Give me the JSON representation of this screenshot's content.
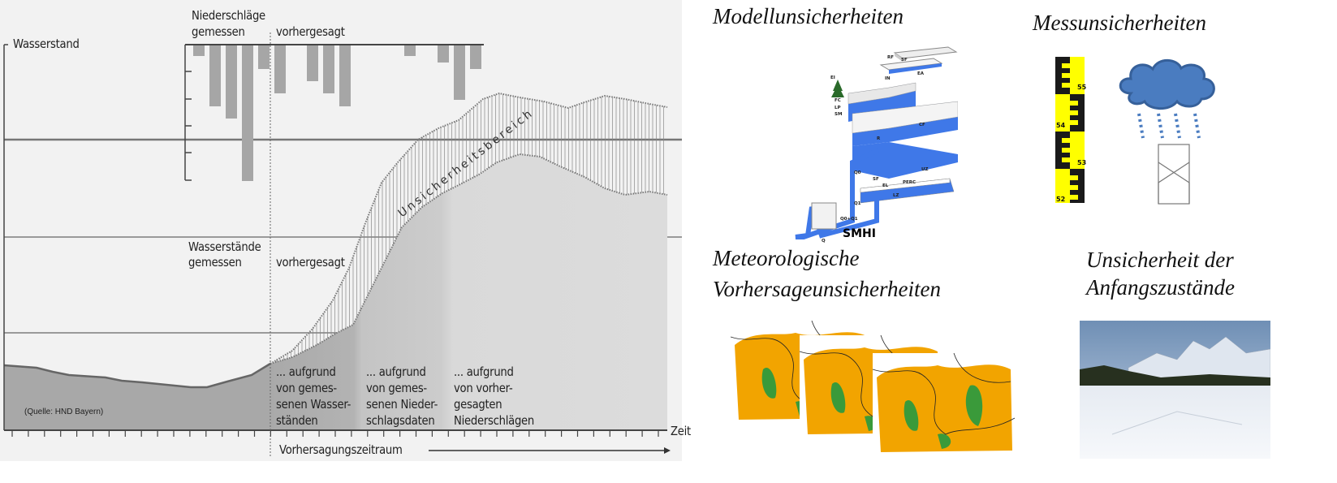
{
  "left_diagram": {
    "y_axis_label": "Wasserstand",
    "x_axis_label": "Zeit",
    "precip_title": "Niederschläge",
    "precip_measured": "gemessen",
    "precip_forecast": "vorhergesagt",
    "level_title": "Wasserstände",
    "level_measured": "gemessen",
    "level_forecast": "vorhergesagt",
    "uncertainty_label": "Unsicherheitsbereich",
    "zone1": [
      "... aufgrund",
      "von gemes-",
      "senen Wasser-",
      "ständen"
    ],
    "zone2": [
      "... aufgrund",
      "von gemes-",
      "senen Nieder-",
      "schlagsdaten"
    ],
    "zone3": [
      "... aufgrund",
      "von vorher-",
      "gesagten",
      "Niederschlägen"
    ],
    "forecast_period": "Vorhersagungszeitraum",
    "source": "(Quelle: HND Bayern)"
  },
  "panels": {
    "model": {
      "title": "Modellunsicherheiten",
      "logo": "SMHI",
      "labels": [
        "SF",
        "RF",
        "EI",
        "IN",
        "EA",
        "FC",
        "LP",
        "SM",
        "CF",
        "R",
        "UZ",
        "Q0",
        "SF",
        "EL",
        "PERC",
        "Q1",
        "LZ",
        "Q0+Q1",
        "Q"
      ]
    },
    "measurement": {
      "title": "Messunsicherheiten",
      "gauge_marks": [
        "55",
        "54",
        "53",
        "52"
      ]
    },
    "meteo": {
      "title_line1": "Meteorologische",
      "title_line2": "Vorhersageunsicherheiten"
    },
    "initial": {
      "title_line1": "Unsicherheit der",
      "title_line2": "Anfangszustände"
    }
  },
  "colors": {
    "model_blue": "#3f78e8",
    "cloud": "#4a7cc0",
    "gauge_yellow": "#ffff00",
    "map_orange": "#f2a400",
    "map_green": "#3a9a3a"
  }
}
